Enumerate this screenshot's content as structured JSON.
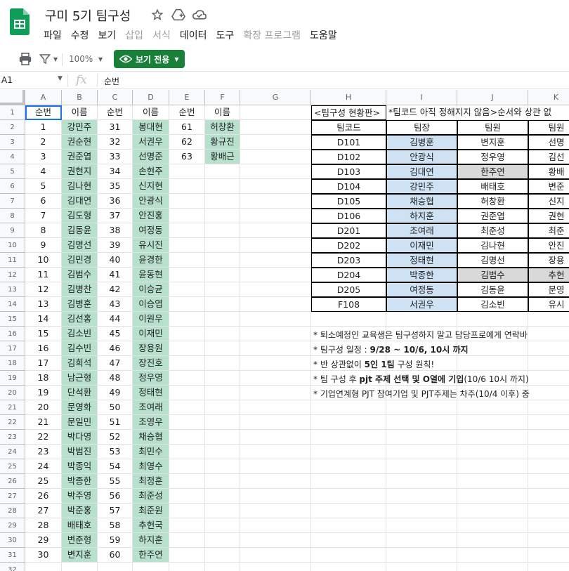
{
  "header": {
    "title": "구미 5기 팀구성",
    "menus": [
      {
        "label": "파일",
        "enabled": true
      },
      {
        "label": "수정",
        "enabled": true
      },
      {
        "label": "보기",
        "enabled": true
      },
      {
        "label": "삽입",
        "enabled": false
      },
      {
        "label": "서식",
        "enabled": false
      },
      {
        "label": "데이터",
        "enabled": true
      },
      {
        "label": "도구",
        "enabled": true
      },
      {
        "label": "확장 프로그램",
        "enabled": false
      },
      {
        "label": "도움말",
        "enabled": true
      }
    ]
  },
  "toolbar": {
    "zoom": "100%",
    "view_only_label": "보기 전용"
  },
  "formula_bar": {
    "cell_ref": "A1",
    "fx": "fx",
    "value": "순번"
  },
  "columns": [
    "A",
    "B",
    "C",
    "D",
    "E",
    "F",
    "G",
    "H",
    "I",
    "J",
    "K"
  ],
  "row_numbers": [
    "1",
    "2",
    "3",
    "4",
    "5",
    "6",
    "7",
    "8",
    "9",
    "10",
    "11",
    "12",
    "13",
    "14",
    "15",
    "16",
    "17",
    "18",
    "19",
    "20",
    "21",
    "22",
    "23",
    "24",
    "25",
    "26",
    "27",
    "28",
    "29",
    "30",
    "31",
    "32"
  ],
  "roster": {
    "headers": [
      "순번",
      "이름",
      "순번",
      "이름",
      "순번",
      "이름"
    ],
    "col_a": [
      "1",
      "2",
      "3",
      "4",
      "5",
      "6",
      "7",
      "8",
      "9",
      "10",
      "11",
      "12",
      "13",
      "14",
      "15",
      "16",
      "17",
      "18",
      "19",
      "20",
      "21",
      "22",
      "23",
      "24",
      "25",
      "26",
      "27",
      "28",
      "29",
      "30"
    ],
    "col_b": [
      "강민주",
      "권순현",
      "권준엽",
      "권현지",
      "김나현",
      "김대연",
      "김도형",
      "김동윤",
      "김명선",
      "김민경",
      "김범수",
      "김병찬",
      "김병훈",
      "김선홍",
      "김소빈",
      "김수빈",
      "김희석",
      "남근형",
      "단석환",
      "문영화",
      "문일민",
      "박다영",
      "박범진",
      "박종익",
      "박종한",
      "박주영",
      "박준홍",
      "배태호",
      "변준형",
      "변지훈"
    ],
    "col_c": [
      "31",
      "32",
      "33",
      "34",
      "35",
      "36",
      "37",
      "38",
      "39",
      "40",
      "41",
      "42",
      "43",
      "44",
      "45",
      "46",
      "47",
      "48",
      "49",
      "50",
      "51",
      "52",
      "53",
      "54",
      "55",
      "56",
      "57",
      "58",
      "59",
      "60"
    ],
    "col_d": [
      "봉대현",
      "서권우",
      "선명준",
      "손현주",
      "신지현",
      "안광식",
      "안진홍",
      "여정동",
      "유시진",
      "윤경한",
      "윤동현",
      "이승균",
      "이승엽",
      "이원우",
      "이재민",
      "장용원",
      "장진호",
      "정우영",
      "정태현",
      "조여래",
      "조영우",
      "채승협",
      "최민수",
      "최영수",
      "최정훈",
      "최준성",
      "최준원",
      "추헌국",
      "하지훈",
      "한주연"
    ],
    "col_e": [
      "61",
      "62",
      "63"
    ],
    "col_f": [
      "허창환",
      "황규진",
      "황배근"
    ]
  },
  "status": {
    "title_part1": "<팀구성 현황판>",
    "title_part2": "*팀코드 아직 정해지지 않음>순서와 상관 없"
  },
  "teams": {
    "headers": [
      "팀코드",
      "팀장",
      "팀원",
      "팀원"
    ],
    "rows": [
      {
        "code": "D101",
        "leader": "김병훈",
        "member1": "변지훈",
        "member2": "선명"
      },
      {
        "code": "D102",
        "leader": "안광식",
        "member1": "정우영",
        "member2": "김선"
      },
      {
        "code": "D103",
        "leader": "김대연",
        "member1": "한주연",
        "member2": "황배"
      },
      {
        "code": "D104",
        "leader": "강민주",
        "member1": "배태호",
        "member2": "변준"
      },
      {
        "code": "D105",
        "leader": "채승협",
        "member1": "허창환",
        "member2": "신지"
      },
      {
        "code": "D106",
        "leader": "하지훈",
        "member1": "권준엽",
        "member2": "권현"
      },
      {
        "code": "D201",
        "leader": "조여래",
        "member1": "최준성",
        "member2": "최준"
      },
      {
        "code": "D202",
        "leader": "이재민",
        "member1": "김나현",
        "member2": "안진"
      },
      {
        "code": "D203",
        "leader": "정태현",
        "member1": "김명선",
        "member2": "장용"
      },
      {
        "code": "D204",
        "leader": "박종한",
        "member1": "김범수",
        "member2": "추헌"
      },
      {
        "code": "D205",
        "leader": "여정동",
        "member1": "김동윤",
        "member2": "문영"
      },
      {
        "code": "F108",
        "leader": "서권우",
        "member1": "김소빈",
        "member2": "유시"
      }
    ]
  },
  "notes": [
    {
      "pre": "* 퇴소예정인 교육생은 팀구성하지 말고 담당프로에게 연락바",
      "bold": "",
      "post": ""
    },
    {
      "pre": "* 팀구성 일정 : ",
      "bold": "9/28 ~ 10/6, 10시 까지",
      "post": ""
    },
    {
      "pre": "* 반 상관없이 ",
      "bold": "5인 1팀",
      "post": " 구성 원칙!"
    },
    {
      "pre": "* 팀 구성 후 ",
      "bold": "pjt 주제 선택 및 O열에 기입",
      "post": "(10/6 10시 까지)"
    },
    {
      "pre": "* 기업연계형 PJT 참여기업 및 PJT주제는 차주(10/4 이후) 중",
      "bold": "",
      "post": ""
    }
  ],
  "colors": {
    "green": "#b7e1cd",
    "blue": "#cfe2f3",
    "gray": "#d9d9d9",
    "button": "#188038",
    "selection": "#1a73e8"
  }
}
